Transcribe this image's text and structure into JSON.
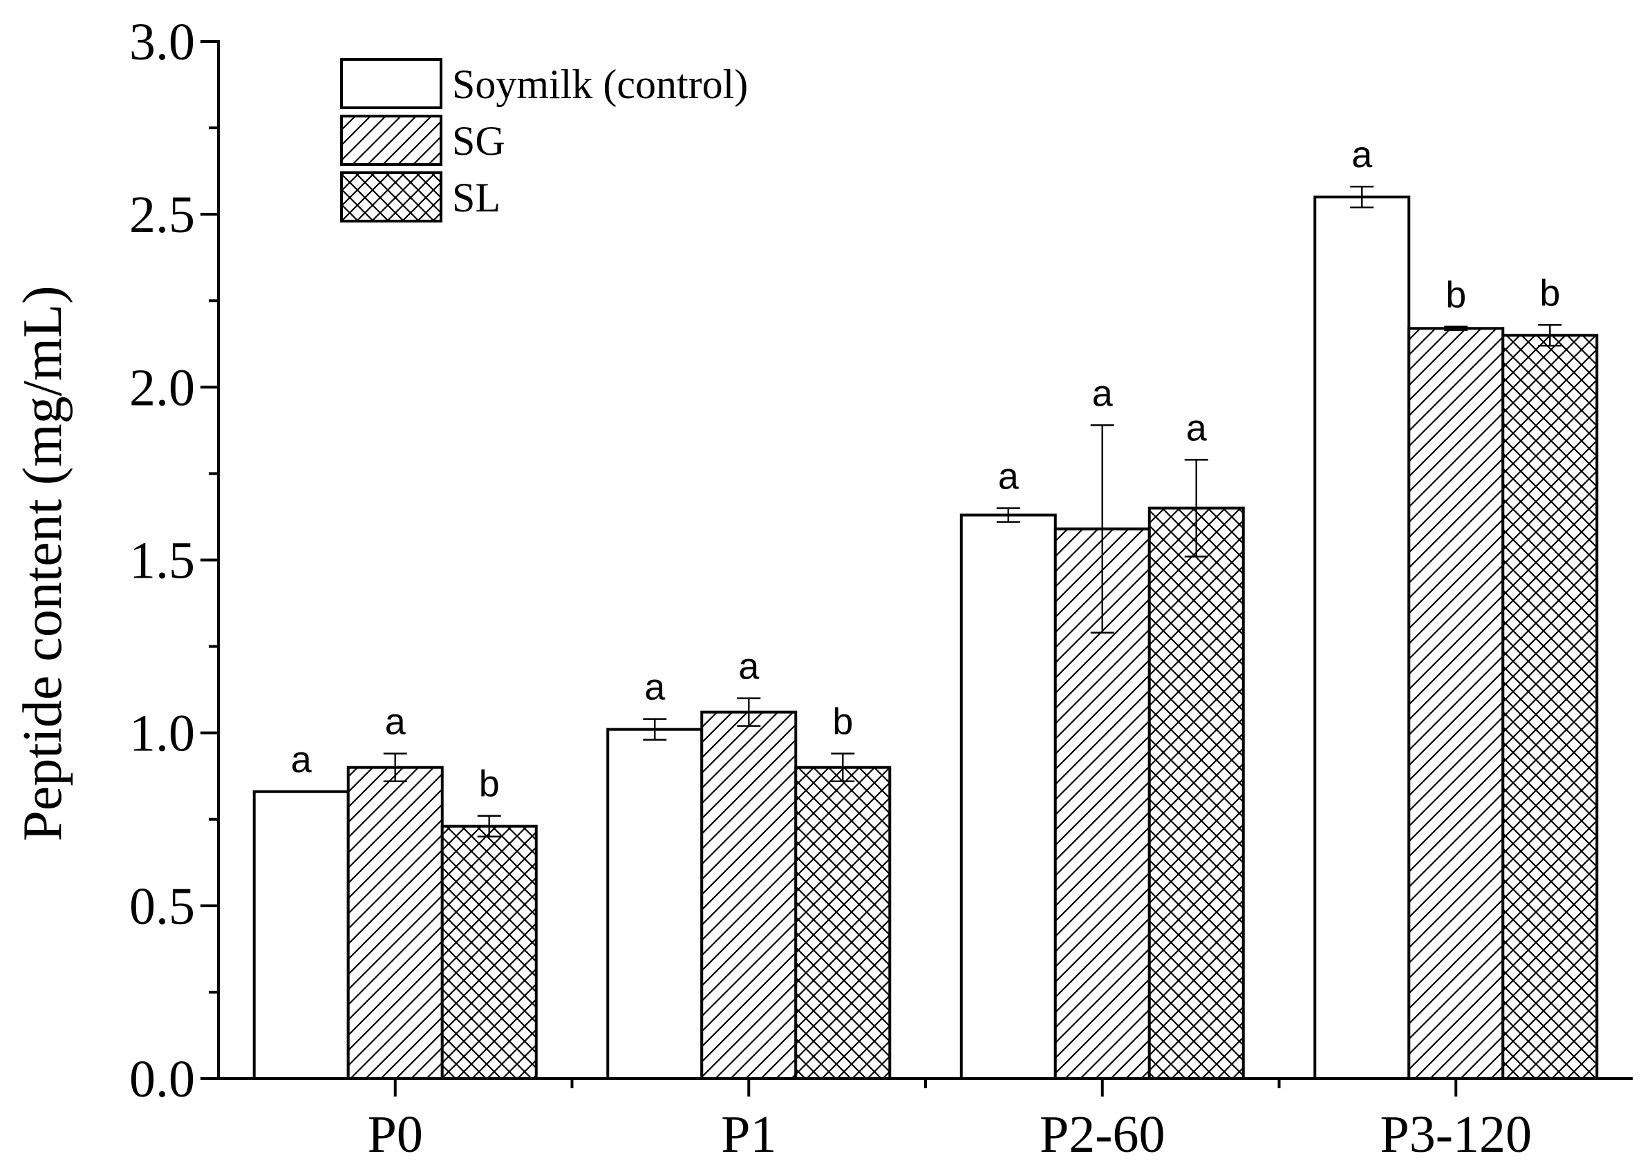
{
  "chart_data": {
    "type": "bar",
    "title": "",
    "xlabel": "",
    "ylabel": "Peptide content (mg/mL)",
    "ylim": [
      0,
      3.0
    ],
    "yticks": [
      "0.0",
      "0.5",
      "1.0",
      "1.5",
      "2.0",
      "2.5",
      "3.0"
    ],
    "categories": [
      "P0",
      "P1",
      "P2-60",
      "P3-120"
    ],
    "legend_position": "top-left",
    "series": [
      {
        "name": "Soymilk (control)",
        "pattern": "none",
        "values": [
          0.83,
          1.01,
          1.63,
          2.55
        ],
        "errors": [
          0.0,
          0.03,
          0.02,
          0.03
        ],
        "significance": [
          "a",
          "a",
          "a",
          "a"
        ]
      },
      {
        "name": "SG",
        "pattern": "diagonal",
        "values": [
          0.9,
          1.06,
          1.59,
          2.17
        ],
        "errors": [
          0.04,
          0.04,
          0.3,
          0.005
        ],
        "significance": [
          "a",
          "a",
          "a",
          "b"
        ]
      },
      {
        "name": "SL",
        "pattern": "crosshatch",
        "values": [
          0.73,
          0.9,
          1.65,
          2.15
        ],
        "errors": [
          0.03,
          0.04,
          0.14,
          0.03
        ],
        "significance": [
          "b",
          "b",
          "a",
          "b"
        ]
      }
    ],
    "colors": {
      "stroke": "#000000",
      "fill": "#ffffff"
    }
  }
}
